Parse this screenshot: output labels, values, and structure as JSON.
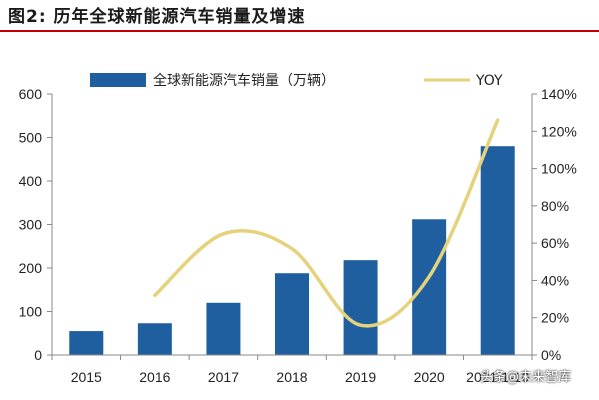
{
  "figure": {
    "title": "图2:  历年全球新能源汽车销量及增速",
    "watermark": "头条@未来智库"
  },
  "colors": {
    "bar": "#1f5fa0",
    "line": "#e6d27a",
    "title_rule": "#c00000"
  },
  "chart_data": {
    "type": "bar",
    "categories": [
      "2015",
      "2016",
      "2017",
      "2018",
      "2019",
      "2020",
      "2021.1-10"
    ],
    "series": [
      {
        "name": "全球新能源汽车销量（万辆）",
        "type": "bar",
        "axis": "left",
        "values": [
          55,
          73,
          120,
          188,
          218,
          312,
          480
        ]
      },
      {
        "name": "YOY",
        "type": "line",
        "axis": "right",
        "values": [
          null,
          32,
          65,
          57,
          16,
          42,
          126
        ]
      }
    ],
    "ylim_left": [
      0,
      600
    ],
    "yticks_left": [
      "0",
      "100",
      "200",
      "300",
      "400",
      "500",
      "600"
    ],
    "ylim_right": [
      0,
      140
    ],
    "yticks_right": [
      "0%",
      "20%",
      "40%",
      "60%",
      "80%",
      "100%",
      "120%",
      "140%"
    ],
    "legend_position": "top",
    "grid": false
  }
}
